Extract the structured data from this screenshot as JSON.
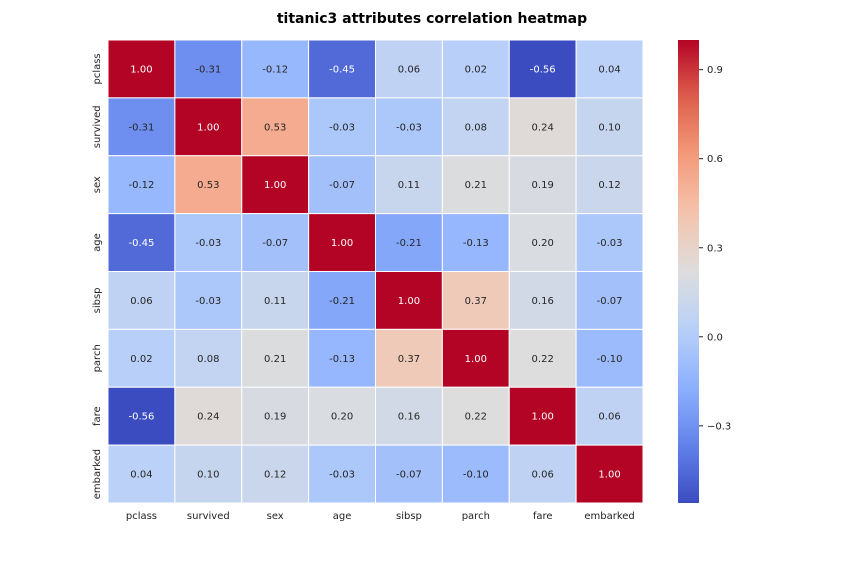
{
  "chart_data": {
    "type": "heatmap",
    "title": "titanic3 attributes correlation heatmap",
    "x_labels": [
      "pclass",
      "survived",
      "sex",
      "age",
      "sibsp",
      "parch",
      "fare",
      "embarked"
    ],
    "y_labels": [
      "pclass",
      "survived",
      "sex",
      "age",
      "sibsp",
      "parch",
      "fare",
      "embarked"
    ],
    "values": [
      [
        1.0,
        -0.31,
        -0.12,
        -0.45,
        0.06,
        0.02,
        -0.56,
        0.04
      ],
      [
        -0.31,
        1.0,
        0.53,
        -0.03,
        -0.03,
        0.08,
        0.24,
        0.1
      ],
      [
        -0.12,
        0.53,
        1.0,
        -0.07,
        0.11,
        0.21,
        0.19,
        0.12
      ],
      [
        -0.45,
        -0.03,
        -0.07,
        1.0,
        -0.21,
        -0.13,
        0.2,
        -0.03
      ],
      [
        0.06,
        -0.03,
        0.11,
        -0.21,
        1.0,
        0.37,
        0.16,
        -0.07
      ],
      [
        0.02,
        0.08,
        0.21,
        -0.13,
        0.37,
        1.0,
        0.22,
        -0.1
      ],
      [
        -0.56,
        0.24,
        0.19,
        0.2,
        0.16,
        0.22,
        1.0,
        0.06
      ],
      [
        0.04,
        0.1,
        0.12,
        -0.03,
        -0.07,
        -0.1,
        0.06,
        1.0
      ]
    ],
    "value_format": "2 decimals",
    "colormap": "coolwarm",
    "vmin": -0.56,
    "vmax": 1.0,
    "colorbar_ticks": [
      0.9,
      0.6,
      0.3,
      0.0,
      -0.3
    ],
    "colorbar_tick_labels": [
      "0.9",
      "0.6",
      "0.3",
      "0.0",
      "−0.3"
    ],
    "grid_lines": true,
    "grid_color": "#ffffff"
  }
}
